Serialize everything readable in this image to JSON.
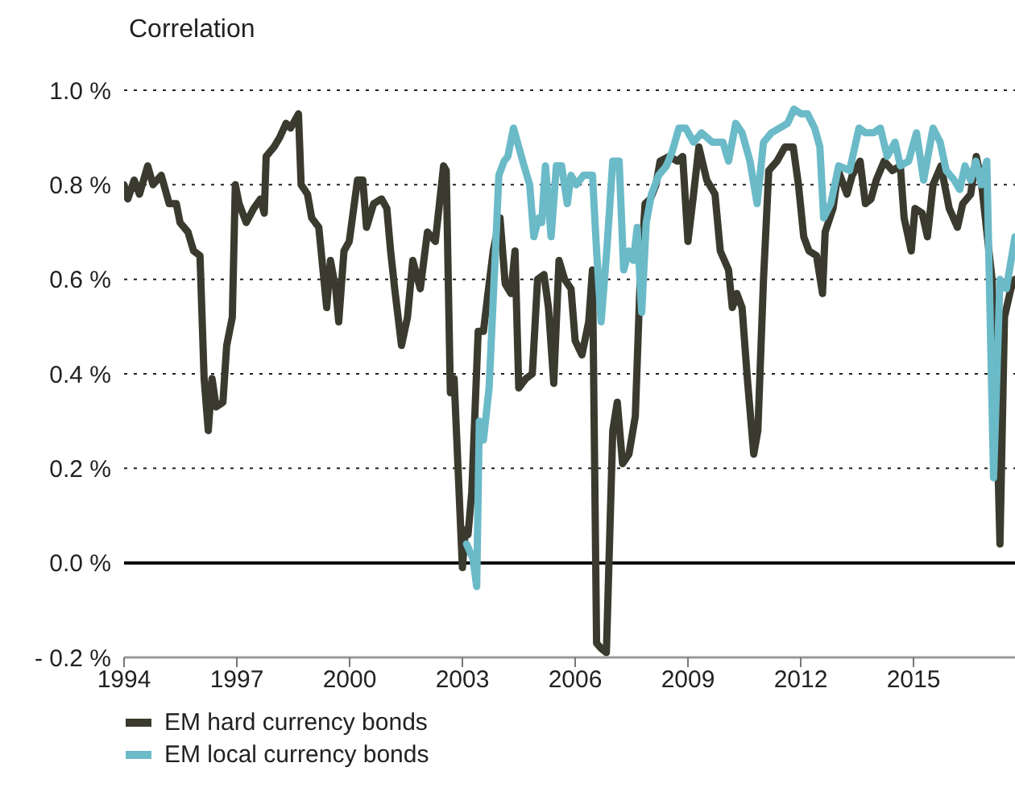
{
  "chart_data": {
    "type": "line",
    "ylabel": "Correlation",
    "xlim": [
      1994,
      2017.7
    ],
    "xticks": [
      1994,
      1997,
      2000,
      2003,
      2006,
      2009,
      2012,
      2015
    ],
    "ylim": [
      -0.2,
      1.0
    ],
    "yticks": [
      {
        "value": -0.2,
        "label": "- 0.2 %"
      },
      {
        "value": 0,
        "label": "0.0 %"
      },
      {
        "value": 0.2,
        "label": "0.2 %"
      },
      {
        "value": 0.4,
        "label": "0.4 %"
      },
      {
        "value": 0.6,
        "label": "0.6 %"
      },
      {
        "value": 0.8,
        "label": "0.8 %"
      },
      {
        "value": 1.0,
        "label": "1.0 %"
      }
    ],
    "grid": "y",
    "legend": "bottom left",
    "marker": "none",
    "line_style": "solid",
    "ref_lines": [
      {
        "axis": "y",
        "value": 0,
        "color": "#000000"
      }
    ],
    "series": [
      {
        "name": "EM hard currency bonds",
        "color": "#3a3a2e",
        "x": [
          1994.0,
          1994.1,
          1994.27,
          1994.41,
          1994.63,
          1994.77,
          1994.99,
          1995.2,
          1995.39,
          1995.49,
          1995.7,
          1995.85,
          1996.02,
          1996.13,
          1996.24,
          1996.34,
          1996.45,
          1996.63,
          1996.73,
          1996.88,
          1996.96,
          1997.06,
          1997.25,
          1997.45,
          1997.63,
          1997.73,
          1997.78,
          1997.99,
          1998.14,
          1998.31,
          1998.43,
          1998.64,
          1998.71,
          1998.88,
          1998.99,
          1999.18,
          1999.39,
          1999.49,
          1999.63,
          1999.71,
          1999.85,
          1999.99,
          2000.21,
          2000.35,
          2000.45,
          2000.64,
          2000.85,
          2000.99,
          2001.09,
          2001.2,
          2001.38,
          2001.54,
          2001.68,
          2001.88,
          2002.07,
          2002.28,
          2002.5,
          2002.57,
          2002.68,
          2002.78,
          2003.0,
          2003.08,
          2003.15,
          2003.25,
          2003.42,
          2003.56,
          2003.68,
          2003.82,
          2004.0,
          2004.14,
          2004.29,
          2004.4,
          2004.5,
          2004.69,
          2004.86,
          2005.0,
          2005.17,
          2005.29,
          2005.43,
          2005.57,
          2005.72,
          2005.89,
          2006.0,
          2006.18,
          2006.36,
          2006.46,
          2006.57,
          2006.68,
          2006.83,
          2007.0,
          2007.12,
          2007.26,
          2007.43,
          2007.6,
          2007.72,
          2007.86,
          2008.0,
          2008.15,
          2008.26,
          2008.5,
          2008.72,
          2008.86,
          2009.0,
          2009.15,
          2009.29,
          2009.5,
          2009.72,
          2009.86,
          2010.08,
          2010.18,
          2010.3,
          2010.44,
          2010.58,
          2010.75,
          2010.86,
          2011.01,
          2011.15,
          2011.37,
          2011.58,
          2011.8,
          2011.94,
          2012.08,
          2012.22,
          2012.42,
          2012.58,
          2012.65,
          2012.86,
          2013.0,
          2013.23,
          2013.37,
          2013.58,
          2013.72,
          2013.87,
          2014.01,
          2014.22,
          2014.44,
          2014.65,
          2014.75,
          2014.94,
          2015.04,
          2015.23,
          2015.37,
          2015.52,
          2015.73,
          2015.95,
          2016.17,
          2016.31,
          2016.52,
          2016.67,
          2016.8,
          2017.09,
          2017.23,
          2017.3,
          2017.42,
          2017.59,
          2017.7
        ],
        "values": [
          0.8,
          0.77,
          0.81,
          0.78,
          0.84,
          0.8,
          0.82,
          0.76,
          0.76,
          0.72,
          0.7,
          0.66,
          0.65,
          0.39,
          0.28,
          0.39,
          0.33,
          0.34,
          0.46,
          0.52,
          0.8,
          0.76,
          0.72,
          0.75,
          0.77,
          0.74,
          0.86,
          0.88,
          0.9,
          0.93,
          0.92,
          0.95,
          0.8,
          0.78,
          0.73,
          0.71,
          0.54,
          0.64,
          0.58,
          0.51,
          0.66,
          0.68,
          0.81,
          0.81,
          0.71,
          0.76,
          0.77,
          0.75,
          0.66,
          0.58,
          0.46,
          0.52,
          0.64,
          0.58,
          0.7,
          0.68,
          0.84,
          0.83,
          0.36,
          0.39,
          -0.01,
          0.07,
          0.06,
          0.15,
          0.49,
          0.49,
          0.57,
          0.66,
          0.73,
          0.59,
          0.57,
          0.66,
          0.37,
          0.39,
          0.4,
          0.6,
          0.61,
          0.54,
          0.38,
          0.64,
          0.6,
          0.58,
          0.47,
          0.44,
          0.51,
          0.62,
          -0.17,
          -0.18,
          -0.19,
          0.28,
          0.34,
          0.21,
          0.23,
          0.31,
          0.58,
          0.76,
          0.77,
          0.8,
          0.85,
          0.86,
          0.85,
          0.86,
          0.68,
          0.78,
          0.88,
          0.81,
          0.78,
          0.66,
          0.62,
          0.54,
          0.57,
          0.54,
          0.39,
          0.23,
          0.28,
          0.6,
          0.83,
          0.85,
          0.88,
          0.88,
          0.8,
          0.69,
          0.66,
          0.65,
          0.57,
          0.7,
          0.75,
          0.83,
          0.78,
          0.82,
          0.85,
          0.76,
          0.77,
          0.81,
          0.85,
          0.83,
          0.84,
          0.73,
          0.66,
          0.75,
          0.74,
          0.69,
          0.8,
          0.84,
          0.75,
          0.71,
          0.76,
          0.78,
          0.86,
          0.81,
          0.6,
          0.26,
          0.04,
          0.52,
          0.58,
          0.6
        ]
      },
      {
        "name": "EM local currency bonds",
        "color": "#6bbac8",
        "x": [
          2003.11,
          2003.28,
          2003.38,
          2003.45,
          2003.56,
          2003.71,
          2003.88,
          2003.97,
          2004.11,
          2004.21,
          2004.36,
          2004.5,
          2004.64,
          2004.79,
          2004.9,
          2005.03,
          2005.11,
          2005.21,
          2005.36,
          2005.5,
          2005.64,
          2005.79,
          2005.89,
          2006.03,
          2006.22,
          2006.46,
          2006.57,
          2006.69,
          2006.84,
          2007.0,
          2007.17,
          2007.29,
          2007.43,
          2007.55,
          2007.65,
          2007.77,
          2007.89,
          2008.03,
          2008.22,
          2008.43,
          2008.58,
          2008.76,
          2008.94,
          2009.15,
          2009.36,
          2009.65,
          2009.93,
          2010.08,
          2010.27,
          2010.44,
          2010.65,
          2010.84,
          2011.01,
          2011.22,
          2011.44,
          2011.65,
          2011.82,
          2012.01,
          2012.18,
          2012.37,
          2012.51,
          2012.61,
          2012.8,
          2013.01,
          2013.3,
          2013.55,
          2013.72,
          2013.94,
          2014.12,
          2014.3,
          2014.51,
          2014.65,
          2014.87,
          2015.08,
          2015.27,
          2015.52,
          2015.71,
          2015.87,
          2016.08,
          2016.23,
          2016.37,
          2016.52,
          2016.66,
          2016.8,
          2016.95,
          2017.13,
          2017.3,
          2017.47,
          2017.7
        ],
        "values": [
          0.04,
          0.01,
          -0.05,
          0.3,
          0.26,
          0.37,
          0.66,
          0.82,
          0.85,
          0.86,
          0.92,
          0.88,
          0.84,
          0.8,
          0.69,
          0.73,
          0.72,
          0.84,
          0.69,
          0.84,
          0.84,
          0.76,
          0.82,
          0.8,
          0.82,
          0.82,
          0.66,
          0.51,
          0.66,
          0.85,
          0.85,
          0.62,
          0.66,
          0.64,
          0.71,
          0.53,
          0.72,
          0.78,
          0.82,
          0.84,
          0.87,
          0.92,
          0.92,
          0.89,
          0.91,
          0.89,
          0.89,
          0.85,
          0.93,
          0.91,
          0.85,
          0.76,
          0.89,
          0.91,
          0.92,
          0.93,
          0.96,
          0.95,
          0.95,
          0.92,
          0.88,
          0.73,
          0.76,
          0.84,
          0.83,
          0.92,
          0.91,
          0.91,
          0.92,
          0.86,
          0.89,
          0.84,
          0.85,
          0.91,
          0.81,
          0.92,
          0.89,
          0.83,
          0.81,
          0.79,
          0.84,
          0.81,
          0.85,
          0.8,
          0.85,
          0.18,
          0.6,
          0.58,
          0.69
        ]
      }
    ]
  }
}
